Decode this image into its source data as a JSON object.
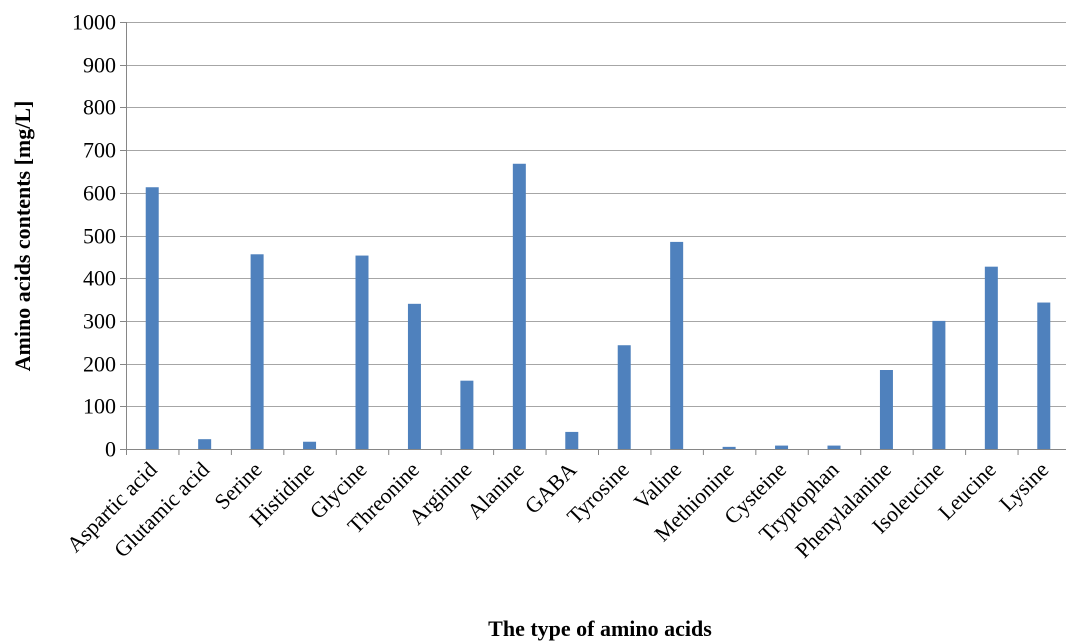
{
  "chart_data": {
    "type": "bar",
    "title": "",
    "xlabel": "The type of amino acids",
    "ylabel": "Amino acids contents [mg/L]",
    "ylim": [
      0,
      1000
    ],
    "yticks": [
      0,
      100,
      200,
      300,
      400,
      500,
      600,
      700,
      800,
      900,
      1000
    ],
    "grid": true,
    "legend": "none",
    "bar_color": "#4F81BD",
    "categories": [
      "Aspartic acid",
      "Glutamic acid",
      "Serine",
      "Histidine",
      "Glycine",
      "Threonine",
      "Arginine",
      "Alanine",
      "GABA",
      "Tyrosine",
      "Valine",
      "Methionine",
      "Cysteine",
      "Tryptophan",
      "Phenylalanine",
      "Isoleucine",
      "Leucine",
      "Lysine"
    ],
    "values": [
      613,
      23,
      456,
      17,
      453,
      340,
      160,
      668,
      40,
      243,
      485,
      5,
      8,
      8,
      185,
      300,
      427,
      343
    ]
  }
}
